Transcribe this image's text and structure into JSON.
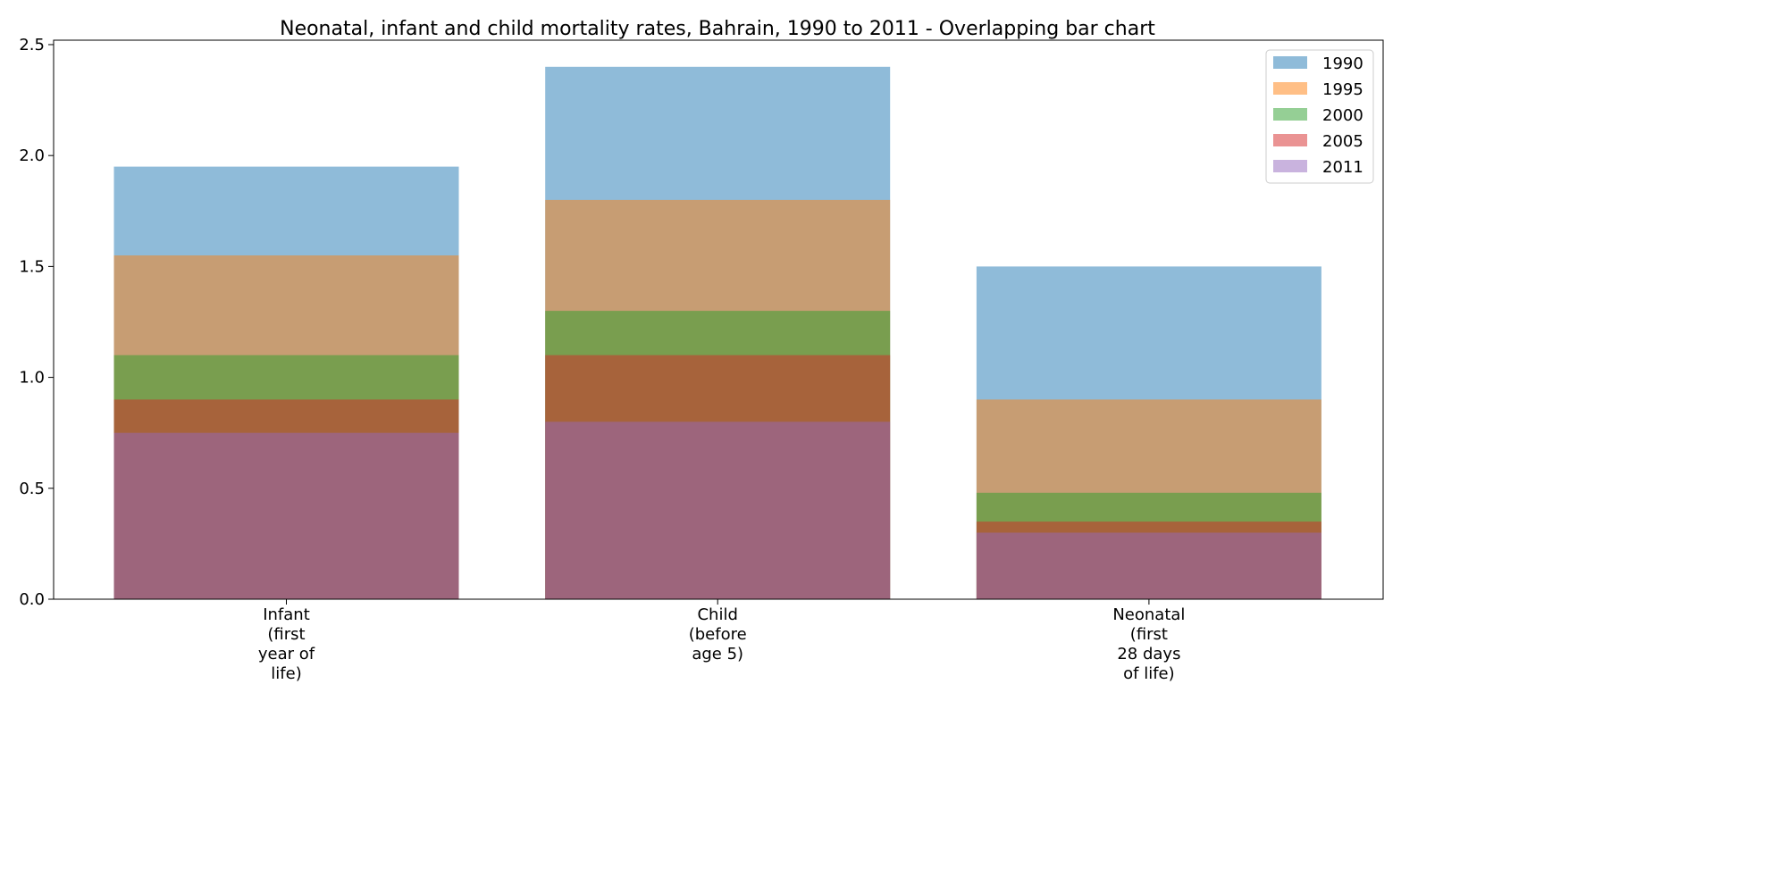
{
  "chart_data": {
    "type": "bar",
    "title": "Neonatal, infant and child mortality rates, Bahrain, 1990 to 2011 - Overlapping bar chart",
    "xlabel": "",
    "ylabel": "",
    "categories": [
      [
        "Infant",
        "(first",
        "year of",
        "life)"
      ],
      [
        "Child",
        "(before",
        "age 5)"
      ],
      [
        "Neonatal",
        "(first",
        "28 days",
        "of life)"
      ]
    ],
    "series": [
      {
        "name": "1990",
        "values": [
          1.95,
          2.4,
          1.5
        ],
        "color": "#1f77b4"
      },
      {
        "name": "1995",
        "values": [
          1.55,
          1.8,
          0.9
        ],
        "color": "#ff7f0e"
      },
      {
        "name": "2000",
        "values": [
          1.1,
          1.3,
          0.48
        ],
        "color": "#2ca02c"
      },
      {
        "name": "2005",
        "values": [
          0.9,
          1.1,
          0.35
        ],
        "color": "#d62728"
      },
      {
        "name": "2011",
        "values": [
          0.75,
          0.8,
          0.3
        ],
        "color": "#9467bd"
      }
    ],
    "ylim": [
      0,
      2.52
    ],
    "yticks": [
      "0.0",
      "0.5",
      "1.0",
      "1.5",
      "2.0",
      "2.5"
    ],
    "bar_opacity": 0.5,
    "grid": false,
    "legend_position": "top-right"
  }
}
